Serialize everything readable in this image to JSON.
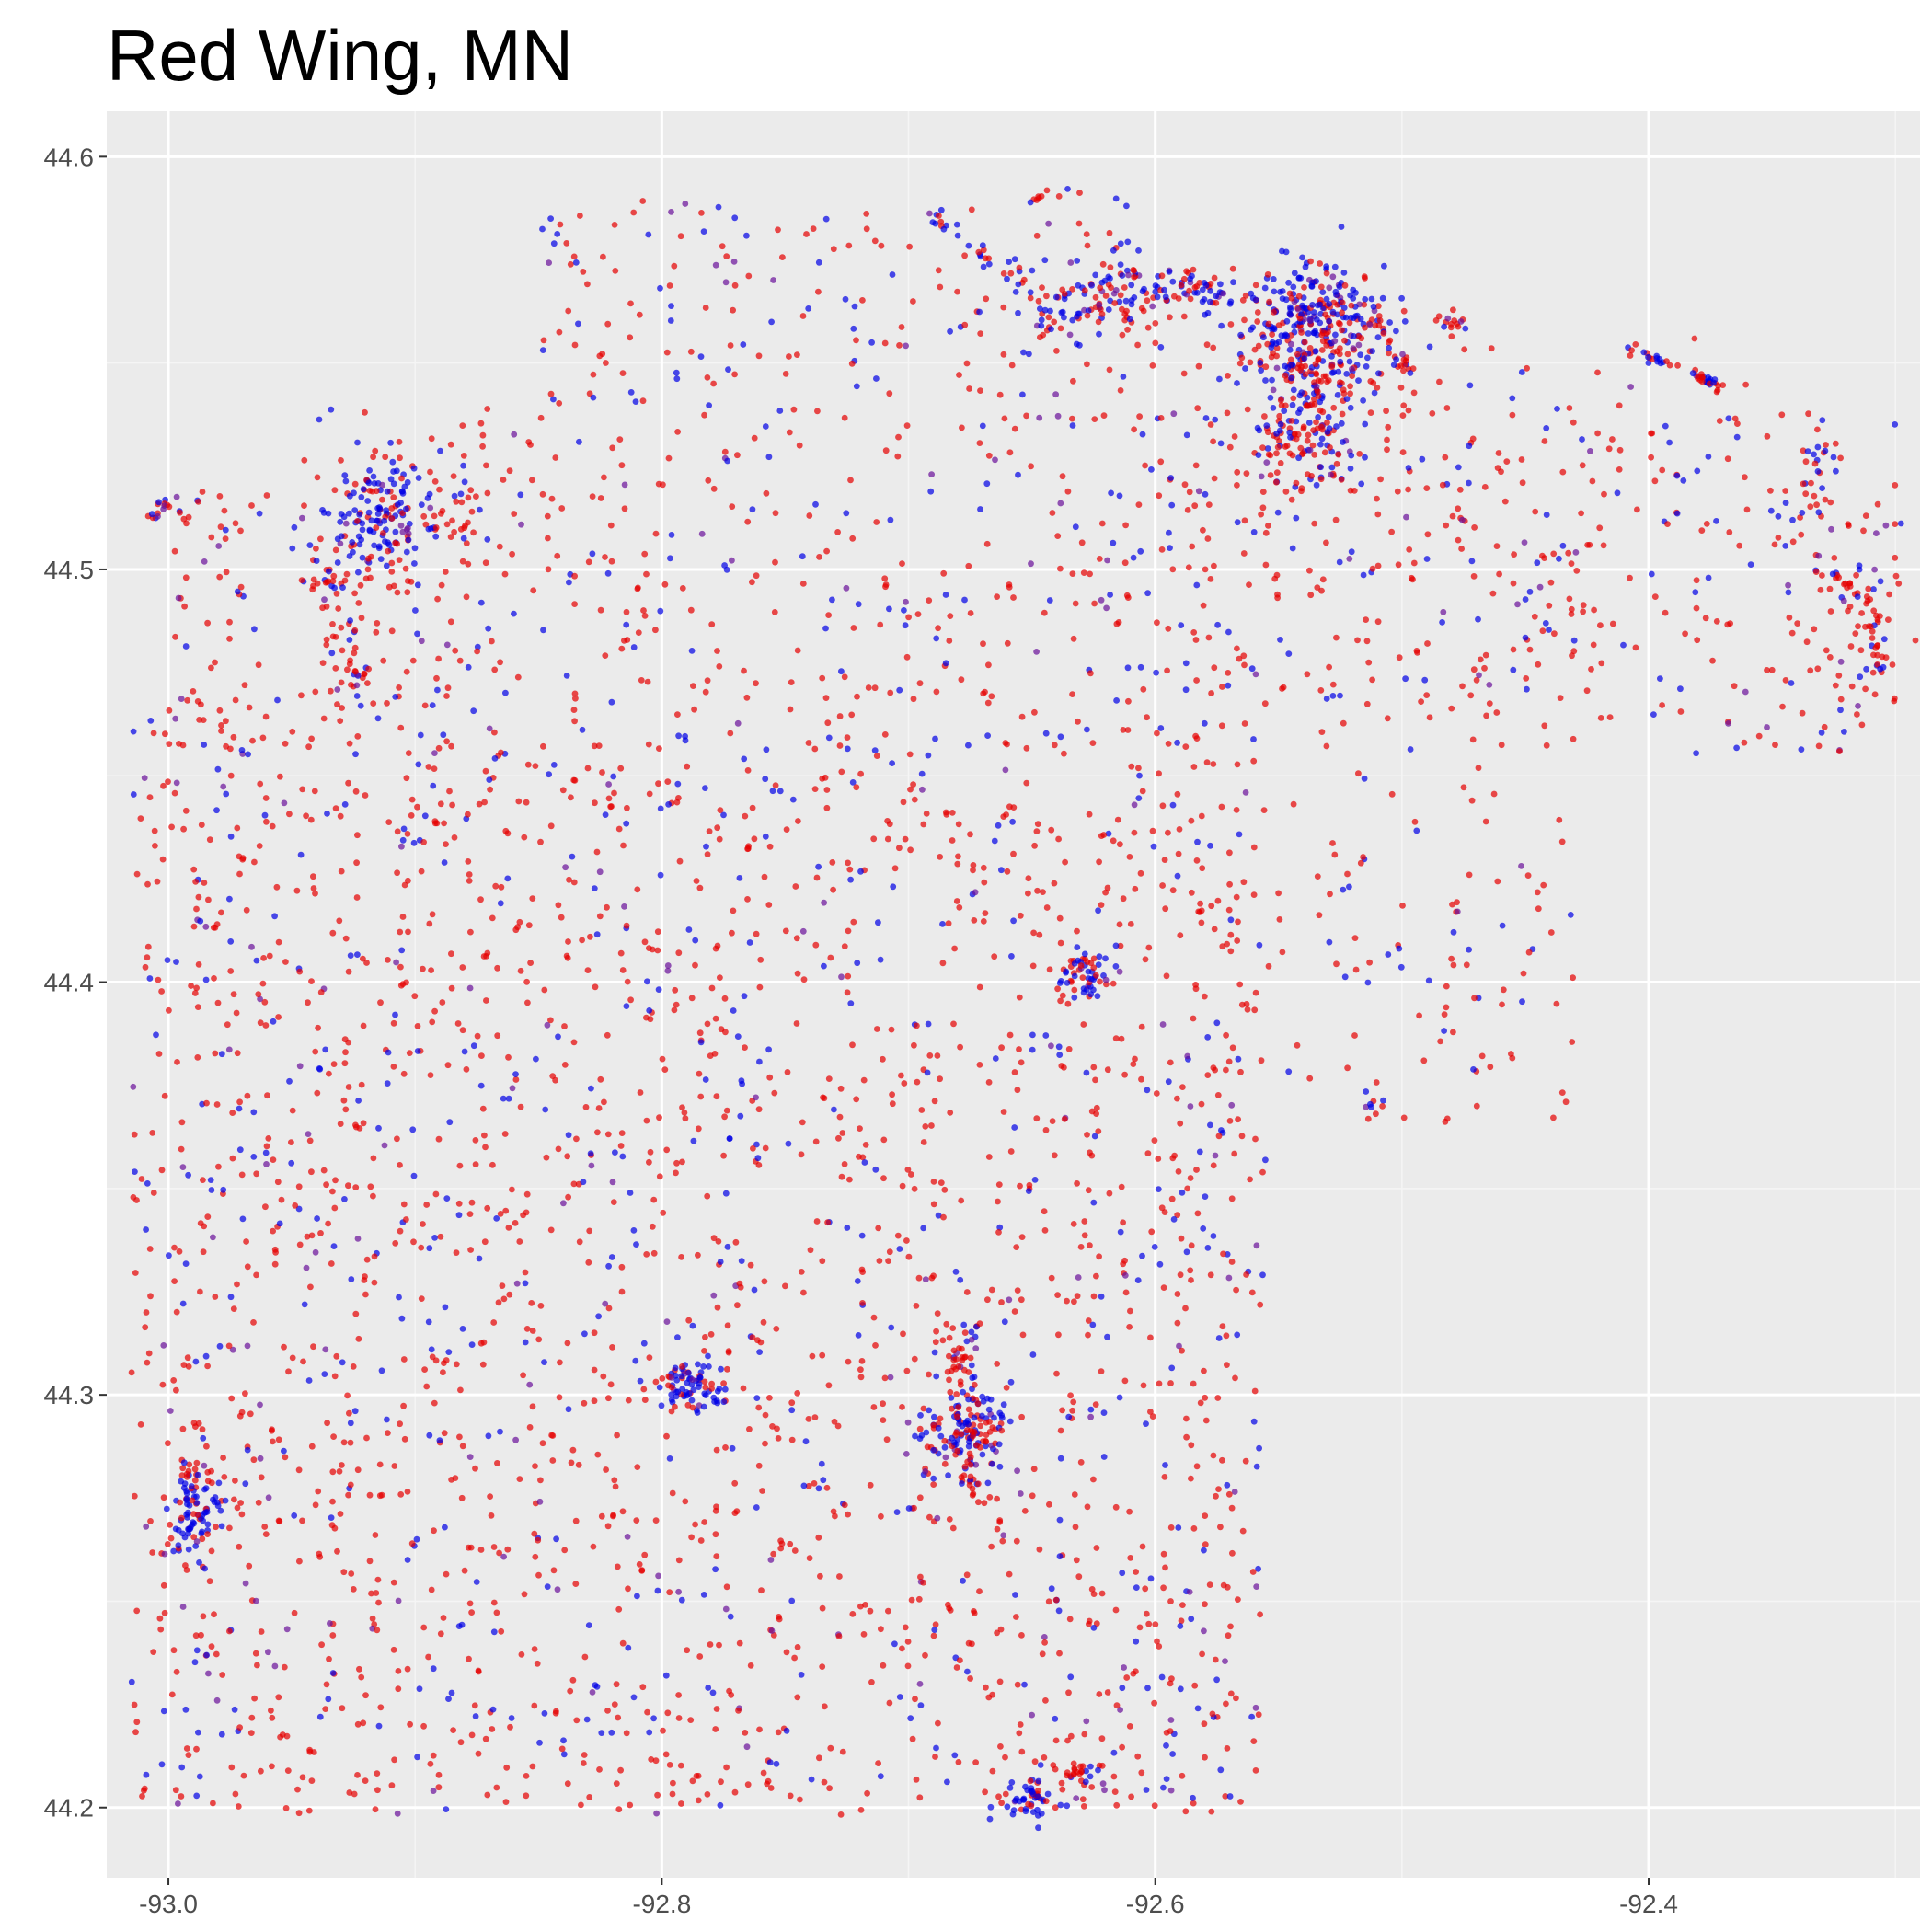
{
  "chart_data": {
    "type": "scatter",
    "title": "Red Wing, MN",
    "xlabel": "",
    "ylabel": "",
    "xlim": [
      -93.025,
      -92.29
    ],
    "ylim": [
      44.183,
      44.611
    ],
    "x_ticks": [
      -93.0,
      -92.8,
      -92.6,
      -92.4
    ],
    "x_tick_labels": [
      "-93.0",
      "-92.8",
      "-92.6",
      "-92.4"
    ],
    "y_ticks": [
      44.2,
      44.3,
      44.4,
      44.5,
      44.6
    ],
    "y_tick_labels": [
      "44.2",
      "44.3",
      "44.4",
      "44.5",
      "44.6"
    ],
    "grid": true,
    "legend": "none",
    "colors": {
      "panel_background": "#ebebeb",
      "grid_major": "#ffffff",
      "grid_minor": "#f5f5f5",
      "series_red": "#e60000",
      "series_blue": "#0000e6",
      "series_purple": "#6a0f9a"
    },
    "point_alpha": 0.7,
    "clusters": [
      {
        "x": -92.534,
        "y": 44.558,
        "sx": 0.016,
        "sy": 0.008,
        "n": 330,
        "blue": 0.5
      },
      {
        "x": -92.537,
        "y": 44.537,
        "sx": 0.012,
        "sy": 0.009,
        "n": 170,
        "blue": 0.35
      },
      {
        "x": -92.915,
        "y": 44.512,
        "sx": 0.011,
        "sy": 0.008,
        "n": 170,
        "blue": 0.65
      },
      {
        "x": -92.615,
        "y": 44.566,
        "sx": 0.01,
        "sy": 0.005,
        "n": 75,
        "blue": 0.4
      },
      {
        "x": -92.584,
        "y": 44.567,
        "sx": 0.009,
        "sy": 0.003,
        "n": 60,
        "blue": 0.5
      },
      {
        "x": -92.639,
        "y": 44.562,
        "sx": 0.007,
        "sy": 0.004,
        "n": 35,
        "blue": 0.6
      },
      {
        "x": -92.678,
        "y": 44.292,
        "sx": 0.009,
        "sy": 0.005,
        "n": 130,
        "blue": 0.6
      },
      {
        "x": -92.678,
        "y": 44.31,
        "sx": 0.005,
        "sy": 0.004,
        "n": 35,
        "blue": 0.3
      },
      {
        "x": -92.675,
        "y": 44.281,
        "sx": 0.005,
        "sy": 0.004,
        "n": 25,
        "blue": 0.35
      },
      {
        "x": -92.788,
        "y": 44.302,
        "sx": 0.007,
        "sy": 0.003,
        "n": 80,
        "blue": 0.6
      },
      {
        "x": -92.63,
        "y": 44.401,
        "sx": 0.005,
        "sy": 0.003,
        "n": 55,
        "blue": 0.55
      },
      {
        "x": -92.988,
        "y": 44.27,
        "sx": 0.006,
        "sy": 0.004,
        "n": 80,
        "blue": 0.75
      },
      {
        "x": -92.988,
        "y": 44.281,
        "sx": 0.004,
        "sy": 0.002,
        "n": 15,
        "blue": 0.25
      },
      {
        "x": -92.65,
        "y": 44.202,
        "sx": 0.005,
        "sy": 0.003,
        "n": 50,
        "blue": 0.7
      },
      {
        "x": -92.632,
        "y": 44.208,
        "sx": 0.005,
        "sy": 0.002,
        "n": 25,
        "blue": 0.25
      },
      {
        "x": -92.926,
        "y": 44.477,
        "sx": 0.004,
        "sy": 0.008,
        "n": 35,
        "blue": 0.15
      },
      {
        "x": -92.938,
        "y": 44.498,
        "sx": 0.004,
        "sy": 0.002,
        "n": 15,
        "blue": 0.3
      },
      {
        "x": -92.88,
        "y": 44.512,
        "sx": 0.008,
        "sy": 0.004,
        "n": 20,
        "blue": 0.3
      },
      {
        "x": -92.31,
        "y": 44.488,
        "sx": 0.01,
        "sy": 0.012,
        "n": 55,
        "blue": 0.2
      },
      {
        "x": -92.331,
        "y": 44.523,
        "sx": 0.004,
        "sy": 0.006,
        "n": 25,
        "blue": 0.35
      },
      {
        "x": -92.479,
        "y": 44.559,
        "sx": 0.004,
        "sy": 0.002,
        "n": 15,
        "blue": 0.2
      },
      {
        "x": -92.511,
        "y": 44.37,
        "sx": 0.002,
        "sy": 0.003,
        "n": 10,
        "blue": 0.3
      },
      {
        "x": -92.343,
        "y": 44.512,
        "sx": 0.003,
        "sy": 0.003,
        "n": 10,
        "blue": 0.3
      },
      {
        "x": -92.896,
        "y": 44.437,
        "sx": 0.006,
        "sy": 0.004,
        "n": 15,
        "blue": 0.2
      },
      {
        "x": -92.656,
        "y": 44.57,
        "sx": 0.004,
        "sy": 0.002,
        "n": 10,
        "blue": 0.6
      }
    ],
    "trails": [
      {
        "points": [
          [
            -92.41,
            44.554
          ],
          [
            -92.385,
            44.548
          ],
          [
            -92.37,
            44.544
          ]
        ],
        "n": 45,
        "blue": 0.4
      },
      {
        "points": [
          [
            -92.512,
            44.565
          ],
          [
            -92.503,
            44.552
          ],
          [
            -92.496,
            44.548
          ]
        ],
        "n": 25,
        "blue": 0.3
      },
      {
        "points": [
          [
            -92.325,
            44.5
          ],
          [
            -92.312,
            44.492
          ],
          [
            -92.303,
            44.47
          ]
        ],
        "n": 30,
        "blue": 0.2
      },
      {
        "points": [
          [
            -93.01,
            44.512
          ],
          [
            -92.998,
            44.517
          ],
          [
            -92.992,
            44.51
          ]
        ],
        "n": 20,
        "blue": 0.2
      },
      {
        "points": [
          [
            -92.69,
            44.586
          ],
          [
            -92.662,
            44.572
          ]
        ],
        "n": 18,
        "blue": 0.7
      },
      {
        "points": [
          [
            -92.652,
            44.59
          ],
          [
            -92.625,
            44.591
          ]
        ],
        "n": 8,
        "blue": 0.2
      }
    ],
    "background_regions": [
      {
        "x": [
          -93.015,
          -92.555
        ],
        "y": [
          44.198,
          44.47
        ],
        "n": 2400,
        "blue": 0.2
      },
      {
        "x": -92.555,
        "y": 44.198,
        "x2": -92.555,
        "y2": 44.198,
        "x_range": [
          -92.555,
          -92.43
        ],
        "y_range": [
          44.365,
          44.47
        ],
        "n": 120,
        "blue": 0.2
      },
      {
        "x": [
          -92.95,
          -92.42
        ],
        "y": [
          44.47,
          44.54
        ],
        "n": 580,
        "blue": 0.25
      },
      {
        "x": [
          -92.42,
          -92.3
        ],
        "y": [
          44.455,
          44.54
        ],
        "n": 120,
        "blue": 0.25
      },
      {
        "x": [
          -92.85,
          -92.6
        ],
        "y": [
          44.54,
          44.59
        ],
        "n": 180,
        "blue": 0.3
      },
      {
        "x": [
          -92.6,
          -92.36
        ],
        "y": [
          44.5,
          44.56
        ],
        "n": 80,
        "blue": 0.3
      },
      {
        "x": [
          -92.998,
          -92.96
        ],
        "y": [
          44.455,
          44.52
        ],
        "n": 50,
        "blue": 0.2
      }
    ]
  }
}
